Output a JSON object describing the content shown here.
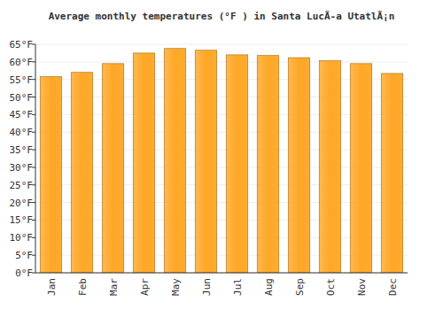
{
  "chart_data": {
    "type": "bar",
    "title": "Average monthly temperatures (°F ) in Santa LucÃ-a UtatlÃ¡n",
    "categories": [
      "Jan",
      "Feb",
      "Mar",
      "Apr",
      "May",
      "Jun",
      "Jul",
      "Aug",
      "Sep",
      "Oct",
      "Nov",
      "Dec"
    ],
    "values": [
      55.8,
      57,
      59.5,
      62.5,
      63.8,
      63.3,
      62,
      61.8,
      61.2,
      60.3,
      59.5,
      56.7
    ],
    "color": "#ffa726",
    "ylim": [
      0,
      65
    ],
    "yticks": [
      {
        "value": 0,
        "label": "0°F"
      },
      {
        "value": 5,
        "label": "5°F"
      },
      {
        "value": 10,
        "label": "10°F"
      },
      {
        "value": 15,
        "label": "15°F"
      },
      {
        "value": 20,
        "label": "20°F"
      },
      {
        "value": 25,
        "label": "25°F"
      },
      {
        "value": 30,
        "label": "30°F"
      },
      {
        "value": 35,
        "label": "35°F"
      },
      {
        "value": 40,
        "label": "40°F"
      },
      {
        "value": 45,
        "label": "45°F"
      },
      {
        "value": 50,
        "label": "50°F"
      },
      {
        "value": 55,
        "label": "55°F"
      },
      {
        "value": 60,
        "label": "60°F"
      },
      {
        "value": 65,
        "label": "65°F"
      }
    ],
    "grid": true
  }
}
